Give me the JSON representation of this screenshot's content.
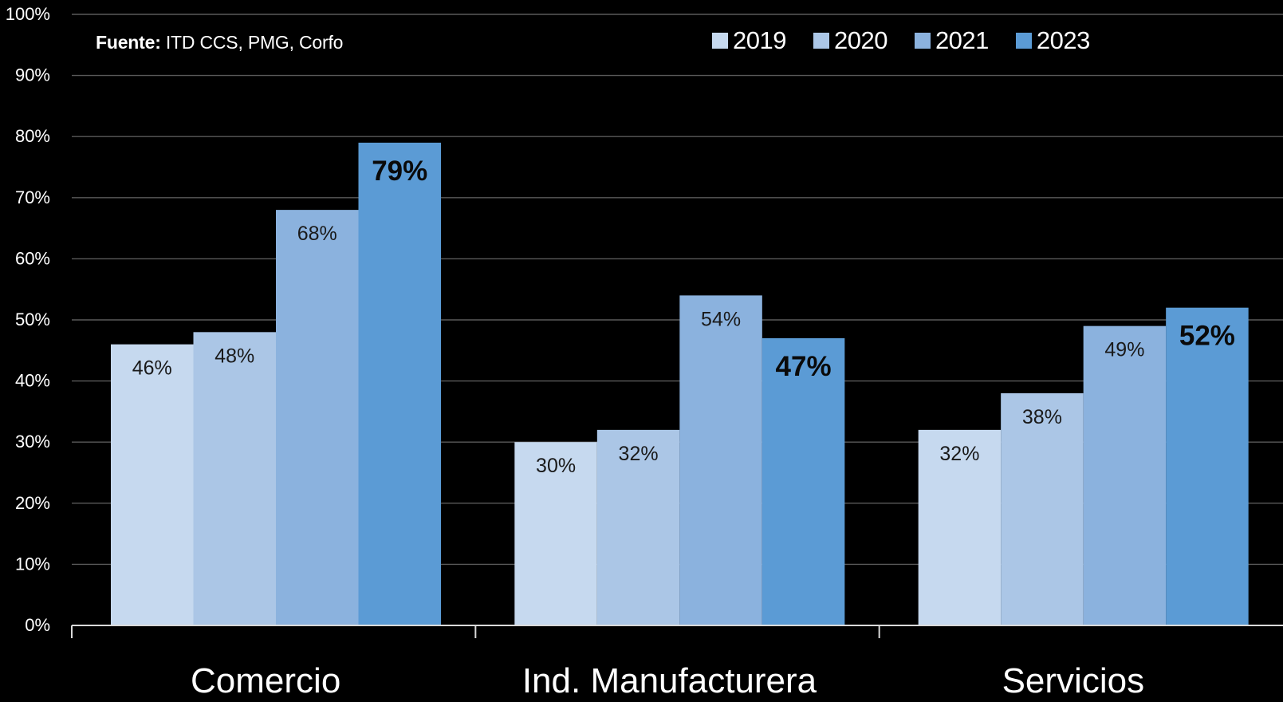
{
  "source": {
    "label": "Fuente:",
    "text": " ITD CCS, PMG, Corfo"
  },
  "chart_data": {
    "type": "bar",
    "categories": [
      "Comercio",
      "Ind. Manufacturera",
      "Servicios"
    ],
    "series": [
      {
        "name": "2019",
        "values": [
          46,
          30,
          32
        ],
        "labels": [
          "46%",
          "30%",
          "32%"
        ],
        "color": "#c6d9ef"
      },
      {
        "name": "2020",
        "values": [
          48,
          32,
          38
        ],
        "labels": [
          "48%",
          "32%",
          "38%"
        ],
        "color": "#abc6e6"
      },
      {
        "name": "2021",
        "values": [
          68,
          54,
          49
        ],
        "labels": [
          "68%",
          "54%",
          "49%"
        ],
        "color": "#8bb2de"
      },
      {
        "name": "2023",
        "values": [
          79,
          47,
          52
        ],
        "labels": [
          "79%",
          "47%",
          "52%"
        ],
        "color": "#5b9bd5",
        "bold_labels": true
      }
    ],
    "ylim": [
      0,
      100
    ],
    "yticks": [
      "0%",
      "10%",
      "20%",
      "30%",
      "40%",
      "50%",
      "60%",
      "70%",
      "80%",
      "90%",
      "100%"
    ],
    "grid": true,
    "legend_position": "top-right",
    "background": "#000000",
    "gridline_color": "#5a5a5a"
  }
}
